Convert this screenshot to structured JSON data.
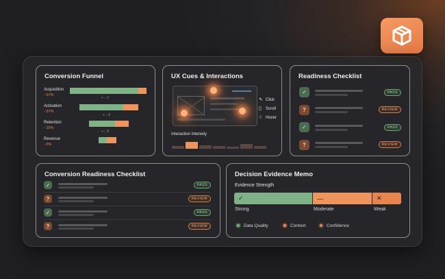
{
  "colors": {
    "accent_orange": "#f0945d",
    "accent_green": "#7fb286",
    "card_bg": "#26262a",
    "page_bg": "#1f1f22"
  },
  "logo": {
    "icon": "box-cube-icon"
  },
  "funnel": {
    "title": "Conversion Funnel",
    "stages": [
      {
        "label": "Acquisition",
        "pct": "- 57%"
      },
      {
        "label": "Activation",
        "pct": "- 57%"
      },
      {
        "label": "Retention",
        "pct": "- 10%"
      },
      {
        "label": "Revenue",
        "pct": "- 0%"
      }
    ],
    "marker_a": "+ ↓ 2",
    "marker_b": "+ ↓ 8",
    "marker_c": "+ ↓ 8"
  },
  "ux": {
    "title": "UX Cues & Interactions",
    "cues": [
      {
        "label": "Click",
        "icon": "cursor-icon"
      },
      {
        "label": "Scroll",
        "icon": "mouse-icon"
      },
      {
        "label": "Hover",
        "icon": "pointer-icon"
      }
    ],
    "intensity_label": "Interaction Intensity",
    "intensity_levels": [
      0.25,
      0.55,
      0.3,
      0.2,
      0.15,
      0.4,
      0.25
    ]
  },
  "readiness": {
    "title": "Readiness Checklist",
    "items": [
      {
        "status": "ok",
        "badge": "PASS"
      },
      {
        "status": "question",
        "badge": "REVIEW"
      },
      {
        "status": "ok",
        "badge": "PASS"
      },
      {
        "status": "question",
        "badge": "REVIEW"
      }
    ]
  },
  "conversion_readiness": {
    "title": "Conversion Readiness Checklist",
    "items": [
      {
        "status": "ok",
        "badge": "PASS"
      },
      {
        "status": "question",
        "badge": "REVIEW"
      },
      {
        "status": "ok",
        "badge": "PASS"
      },
      {
        "status": "question",
        "badge": "REVIEW"
      }
    ]
  },
  "memo": {
    "title": "Decision Evidence Memo",
    "strength_label": "Evidence Strength",
    "segments": [
      {
        "label": "Strong",
        "symbol": "✓"
      },
      {
        "label": "Moderate",
        "symbol": "—"
      },
      {
        "label": "Weak",
        "symbol": "✕"
      }
    ],
    "legend": [
      {
        "label": "Data Quality"
      },
      {
        "label": "Context"
      },
      {
        "label": "Confidence"
      }
    ]
  }
}
